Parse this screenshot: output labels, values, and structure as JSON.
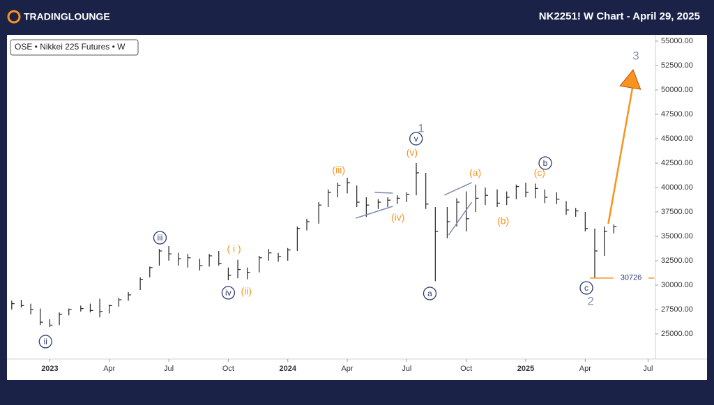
{
  "header": {
    "logo": "TRADINGLOUNGE",
    "title": "NK2251! W Chart - April 29, 2025"
  },
  "chart_data": {
    "type": "ohlc",
    "legend_text": "OSE • Nikkei 225 Futures • W",
    "color": "#222222",
    "x": [
      2022.84,
      2022.88,
      2022.92,
      2022.96,
      2023.0,
      2023.04,
      2023.08,
      2023.13,
      2023.17,
      2023.21,
      2023.25,
      2023.29,
      2023.33,
      2023.38,
      2023.42,
      2023.46,
      2023.5,
      2023.54,
      2023.58,
      2023.63,
      2023.67,
      2023.71,
      2023.75,
      2023.79,
      2023.83,
      2023.88,
      2023.92,
      2023.96,
      2024.0,
      2024.04,
      2024.08,
      2024.13,
      2024.17,
      2024.21,
      2024.25,
      2024.29,
      2024.33,
      2024.38,
      2024.42,
      2024.46,
      2024.5,
      2024.54,
      2024.58,
      2024.62,
      2024.67,
      2024.71,
      2024.75,
      2024.79,
      2024.83,
      2024.88,
      2024.92,
      2024.96,
      2025.0,
      2025.04,
      2025.08,
      2025.13,
      2025.17,
      2025.21,
      2025.25,
      2025.29,
      2025.33,
      2025.37
    ],
    "high": [
      28400,
      28500,
      28100,
      27600,
      26500,
      27200,
      27600,
      27900,
      28100,
      28600,
      28000,
      28700,
      29300,
      30800,
      31900,
      33700,
      34000,
      33300,
      33200,
      32700,
      33200,
      33500,
      31800,
      32600,
      31800,
      33000,
      33700,
      33300,
      33800,
      36000,
      36800,
      38500,
      39800,
      40500,
      41000,
      40200,
      39000,
      38800,
      39000,
      39200,
      39500,
      42500,
      41500,
      38000,
      38000,
      38900,
      39600,
      40300,
      40000,
      39800,
      39600,
      40300,
      40500,
      40400,
      39800,
      39500,
      38600,
      37900,
      37500,
      35800,
      36000,
      36200
    ],
    "low": [
      27500,
      27700,
      27000,
      25900,
      25700,
      25900,
      26900,
      27300,
      27200,
      26700,
      27100,
      27800,
      28400,
      29500,
      30800,
      32000,
      32500,
      32000,
      31800,
      31500,
      31900,
      32000,
      30500,
      30700,
      30600,
      31300,
      32500,
      32400,
      32500,
      33500,
      35600,
      36300,
      38000,
      39000,
      39400,
      38000,
      37000,
      37800,
      38000,
      38300,
      38500,
      39200,
      37800,
      30400,
      34800,
      36000,
      35500,
      37500,
      38200,
      38000,
      38200,
      38800,
      39000,
      38900,
      38400,
      38300,
      37200,
      37000,
      35500,
      30726,
      33000,
      35300
    ],
    "close": [
      28100,
      27900,
      27500,
      26200,
      25900,
      27000,
      27500,
      27600,
      27400,
      27300,
      27900,
      28500,
      29000,
      30600,
      31800,
      33500,
      33200,
      32700,
      32800,
      32000,
      33000,
      32200,
      31000,
      31600,
      31300,
      32800,
      33300,
      32900,
      33600,
      35800,
      36500,
      38200,
      39500,
      40200,
      40500,
      38500,
      38200,
      38500,
      38700,
      38900,
      39300,
      41500,
      38300,
      35500,
      36500,
      38500,
      36800,
      38900,
      39200,
      38400,
      39000,
      40100,
      39500,
      39900,
      39000,
      38800,
      37700,
      37600,
      35800,
      33500,
      35500,
      36000
    ],
    "xlim": [
      2022.82,
      2025.545
    ],
    "ylim": [
      22430,
      55640
    ],
    "xticks": [
      {
        "value": 2023,
        "label": "2023"
      },
      {
        "value": 2023.25,
        "label": "Apr"
      },
      {
        "value": 2023.5,
        "label": "Jul"
      },
      {
        "value": 2023.75,
        "label": "Oct"
      },
      {
        "value": 2024,
        "label": "2024"
      },
      {
        "value": 2024.25,
        "label": "Apr"
      },
      {
        "value": 2024.5,
        "label": "Jul"
      },
      {
        "value": 2024.75,
        "label": "Oct"
      },
      {
        "value": 2025,
        "label": "2025"
      },
      {
        "value": 2025.25,
        "label": "Apr"
      },
      {
        "value": 2025.514,
        "label": "Jul"
      }
    ],
    "yticks": [
      {
        "value": 25000,
        "label": "25000.00"
      },
      {
        "value": 27500,
        "label": "27500.00"
      },
      {
        "value": 30000,
        "label": "30000.00"
      },
      {
        "value": 32500,
        "label": "32500.00"
      },
      {
        "value": 35000,
        "label": "35000.00"
      },
      {
        "value": 37500,
        "label": "37500.00"
      },
      {
        "value": 40000,
        "label": "40000.00"
      },
      {
        "value": 42500,
        "label": "42500.00"
      },
      {
        "value": 45000,
        "label": "45000.00"
      },
      {
        "value": 47500,
        "label": "47500.00"
      },
      {
        "value": 50000,
        "label": "50000.00"
      },
      {
        "value": 52500,
        "label": "52500.00"
      },
      {
        "value": 55000,
        "label": "55000.00"
      }
    ],
    "level": {
      "value": 30726,
      "x": [
        2025.27,
        2025.54
      ],
      "color": "#f7931e"
    },
    "arrow": {
      "x": [
        2025.347,
        2025.449
      ],
      "y": [
        36286,
        51714
      ],
      "color": "#f7931e"
    },
    "trendlines": [
      {
        "x": [
          2024.286,
          2024.441
        ],
        "y": [
          36857,
          38071
        ]
      },
      {
        "x": [
          2024.365,
          2024.441
        ],
        "y": [
          39500,
          39429
        ]
      },
      {
        "x": [
          2024.658,
          2024.773
        ],
        "y": [
          39214,
          40500
        ]
      },
      {
        "x": [
          2024.676,
          2024.773
        ],
        "y": [
          35143,
          38500
        ]
      }
    ],
    "trendline_color": "#7f8bb0",
    "annotations": [
      {
        "text": "ii",
        "x": 2022.982,
        "y": 24214,
        "color": "#2e3a6e",
        "circle": true
      },
      {
        "text": "iii",
        "x": 2023.463,
        "y": 34857,
        "color": "#2e3a6e",
        "circle": true
      },
      {
        "text": "iv",
        "x": 2023.75,
        "y": 29214,
        "color": "#2e3a6e",
        "circle": true
      },
      {
        "text": "( i )",
        "x": 2023.774,
        "y": 33714,
        "color": "#f7931e",
        "circle": false
      },
      {
        "text": "(ii)",
        "x": 2023.826,
        "y": 29357,
        "color": "#f7931e",
        "circle": false
      },
      {
        "text": "(iii)",
        "x": 2024.214,
        "y": 41786,
        "color": "#f7931e",
        "circle": false
      },
      {
        "text": "(iv)",
        "x": 2024.463,
        "y": 36929,
        "color": "#f7931e",
        "circle": false
      },
      {
        "text": "(v)",
        "x": 2024.522,
        "y": 43571,
        "color": "#f7931e",
        "circle": false
      },
      {
        "text": "v",
        "x": 2024.539,
        "y": 45000,
        "color": "#2e3a6e",
        "circle": true
      },
      {
        "text": "1",
        "x": 2024.56,
        "y": 46071,
        "color": "#8a93a8",
        "circle": false
      },
      {
        "text": "a",
        "x": 2024.597,
        "y": 29143,
        "color": "#2e3a6e",
        "circle": true
      },
      {
        "text": "(a)",
        "x": 2024.788,
        "y": 41500,
        "color": "#f7931e",
        "circle": false
      },
      {
        "text": "(b)",
        "x": 2024.905,
        "y": 36571,
        "color": "#f7931e",
        "circle": false
      },
      {
        "text": "(c)",
        "x": 2025.058,
        "y": 41500,
        "color": "#f7931e",
        "circle": false
      },
      {
        "text": "b",
        "x": 2025.082,
        "y": 42500,
        "color": "#2e3a6e",
        "circle": true
      },
      {
        "text": "c",
        "x": 2025.255,
        "y": 29714,
        "color": "#2e3a6e",
        "circle": true
      },
      {
        "text": "2",
        "x": 2025.273,
        "y": 28357,
        "color": "#8a93a8",
        "circle": false
      },
      {
        "text": "3",
        "x": 2025.463,
        "y": 53500,
        "color": "#8a93a8",
        "circle": false
      }
    ]
  }
}
